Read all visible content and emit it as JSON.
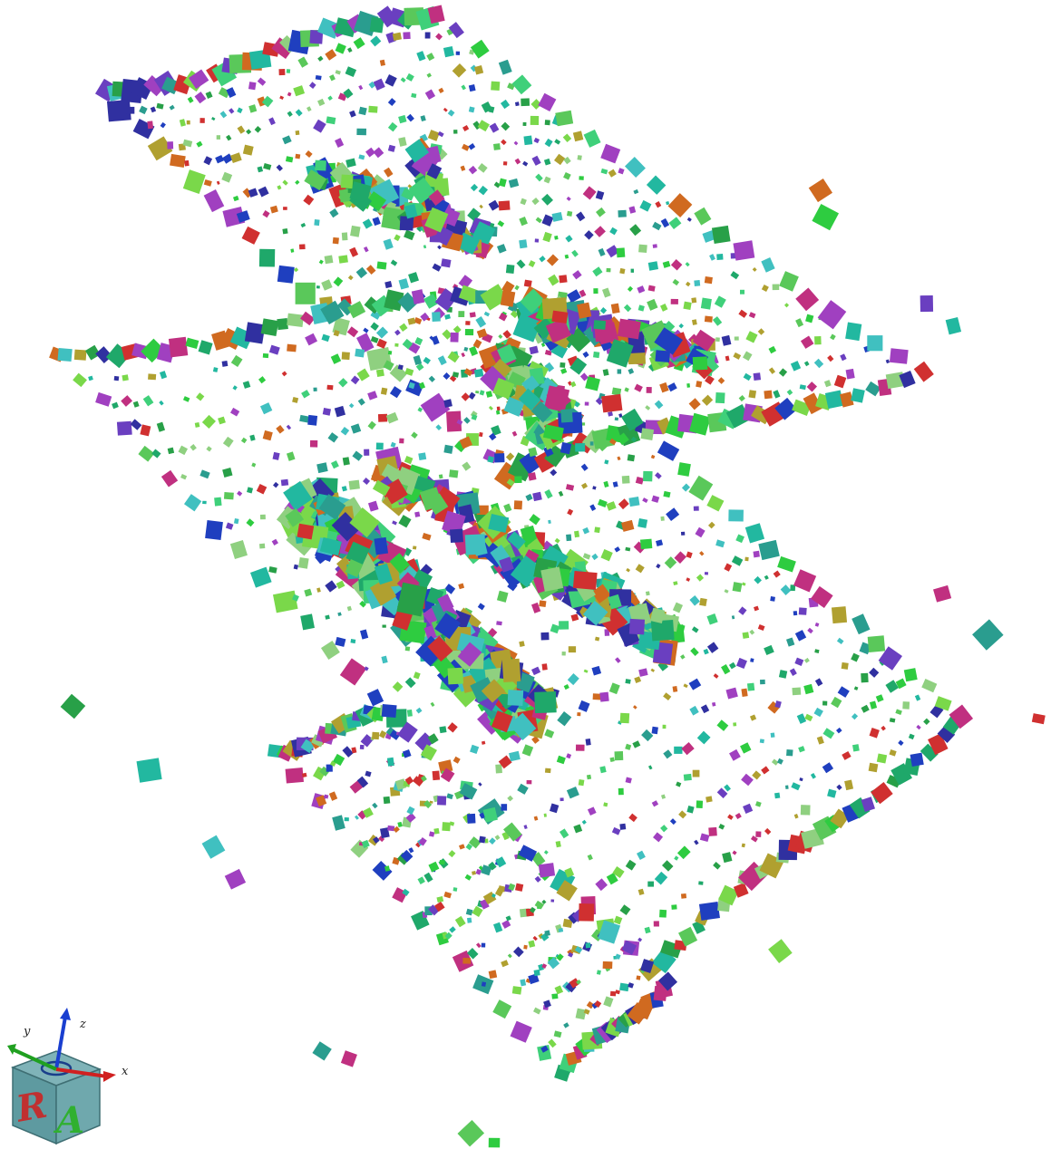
{
  "orientation_cube": {
    "axis_labels": {
      "x": "x",
      "y": "y",
      "z": "z"
    },
    "faces": [
      "R",
      "A"
    ]
  }
}
